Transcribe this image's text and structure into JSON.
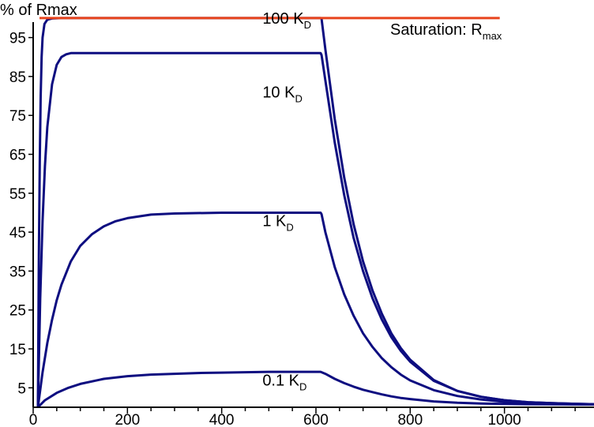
{
  "chart_data": {
    "type": "line",
    "ylabel": "% of Rmax",
    "xlabel": "",
    "xlim": [
      0,
      1190
    ],
    "ylim": [
      0,
      101
    ],
    "x_ticks": [
      0,
      200,
      400,
      600,
      800,
      1000
    ],
    "y_ticks": [
      5,
      15,
      25,
      35,
      45,
      55,
      65,
      75,
      85,
      95
    ],
    "grid": false,
    "legend": "none",
    "colors": {
      "saturation": "#e8441c",
      "curves": "#0d0d80",
      "axis": "#000000"
    },
    "saturation_line": {
      "label": "Saturation: R",
      "label_sub": "max",
      "y": 100,
      "x": [
        0,
        990
      ]
    },
    "series": [
      {
        "label": "100 K",
        "label_sub": "D",
        "label_pos": [
          500,
          100
        ],
        "x": [
          10,
          12,
          14,
          16,
          18,
          20,
          24,
          30,
          40,
          60,
          100,
          200,
          300,
          400,
          500,
          600,
          610,
          612,
          620,
          640,
          660,
          680,
          700,
          720,
          740,
          760,
          780,
          800,
          850,
          900,
          950,
          1000,
          1050,
          1100,
          1150,
          1190
        ],
        "values": [
          0,
          39,
          64,
          80,
          90,
          95,
          98.5,
          99.6,
          99.9,
          100,
          100,
          100,
          100,
          100,
          100,
          100,
          100,
          99.8,
          92,
          74,
          59,
          47,
          37.5,
          30,
          24,
          19,
          15.2,
          12.2,
          7,
          4.2,
          2.7,
          1.8,
          1.3,
          1.05,
          0.9,
          0.8
        ]
      },
      {
        "label": "10 K",
        "label_sub": "D",
        "label_pos": [
          500,
          81
        ],
        "x": [
          10,
          15,
          20,
          25,
          30,
          40,
          50,
          60,
          70,
          80,
          100,
          150,
          200,
          300,
          400,
          500,
          600,
          610,
          612,
          620,
          640,
          660,
          680,
          700,
          720,
          740,
          760,
          780,
          800,
          850,
          900,
          950,
          1000,
          1050,
          1100,
          1150,
          1190
        ],
        "values": [
          0,
          28,
          48,
          62,
          72,
          83,
          88,
          90,
          90.7,
          91,
          91,
          91,
          91,
          91,
          91,
          91,
          91,
          91,
          90.5,
          84,
          68,
          54.5,
          43.5,
          35,
          28,
          22.5,
          18,
          14.5,
          11.7,
          6.8,
          4.2,
          2.7,
          1.8,
          1.3,
          1.05,
          0.9,
          0.8
        ]
      },
      {
        "label": "1 K",
        "label_sub": "D",
        "label_pos": [
          500,
          48
        ],
        "x": [
          10,
          20,
          30,
          40,
          50,
          60,
          80,
          100,
          125,
          150,
          175,
          200,
          250,
          300,
          400,
          500,
          610,
          612,
          620,
          640,
          660,
          680,
          700,
          720,
          740,
          760,
          780,
          800,
          850,
          900,
          950,
          1000,
          1050,
          1100,
          1150,
          1190
        ],
        "values": [
          0,
          9,
          16.5,
          22.5,
          27.5,
          31.5,
          37.5,
          41.5,
          44.5,
          46.5,
          47.8,
          48.6,
          49.5,
          49.8,
          50,
          50,
          50,
          49.6,
          45,
          36,
          29,
          23.5,
          19,
          15.5,
          12.6,
          10.3,
          8.4,
          6.9,
          4.4,
          2.9,
          2,
          1.4,
          1.05,
          0.85,
          0.75,
          0.7
        ]
      },
      {
        "label": "0.1 K",
        "label_sub": "D",
        "label_pos": [
          500,
          7
        ],
        "x": [
          10,
          25,
          50,
          75,
          100,
          150,
          200,
          250,
          300,
          350,
          400,
          450,
          500,
          600,
          610,
          620,
          640,
          660,
          680,
          700,
          720,
          740,
          760,
          780,
          800,
          850,
          900,
          950,
          1000,
          1050,
          1100,
          1150,
          1190
        ],
        "values": [
          0,
          1.8,
          3.7,
          5,
          6,
          7.3,
          8,
          8.4,
          8.6,
          8.8,
          8.9,
          9,
          9.1,
          9.1,
          9.1,
          8.6,
          7.3,
          6.2,
          5.3,
          4.5,
          3.9,
          3.3,
          2.8,
          2.4,
          2.1,
          1.5,
          1.15,
          0.95,
          0.85,
          0.8,
          0.75,
          0.72,
          0.7
        ]
      }
    ]
  }
}
